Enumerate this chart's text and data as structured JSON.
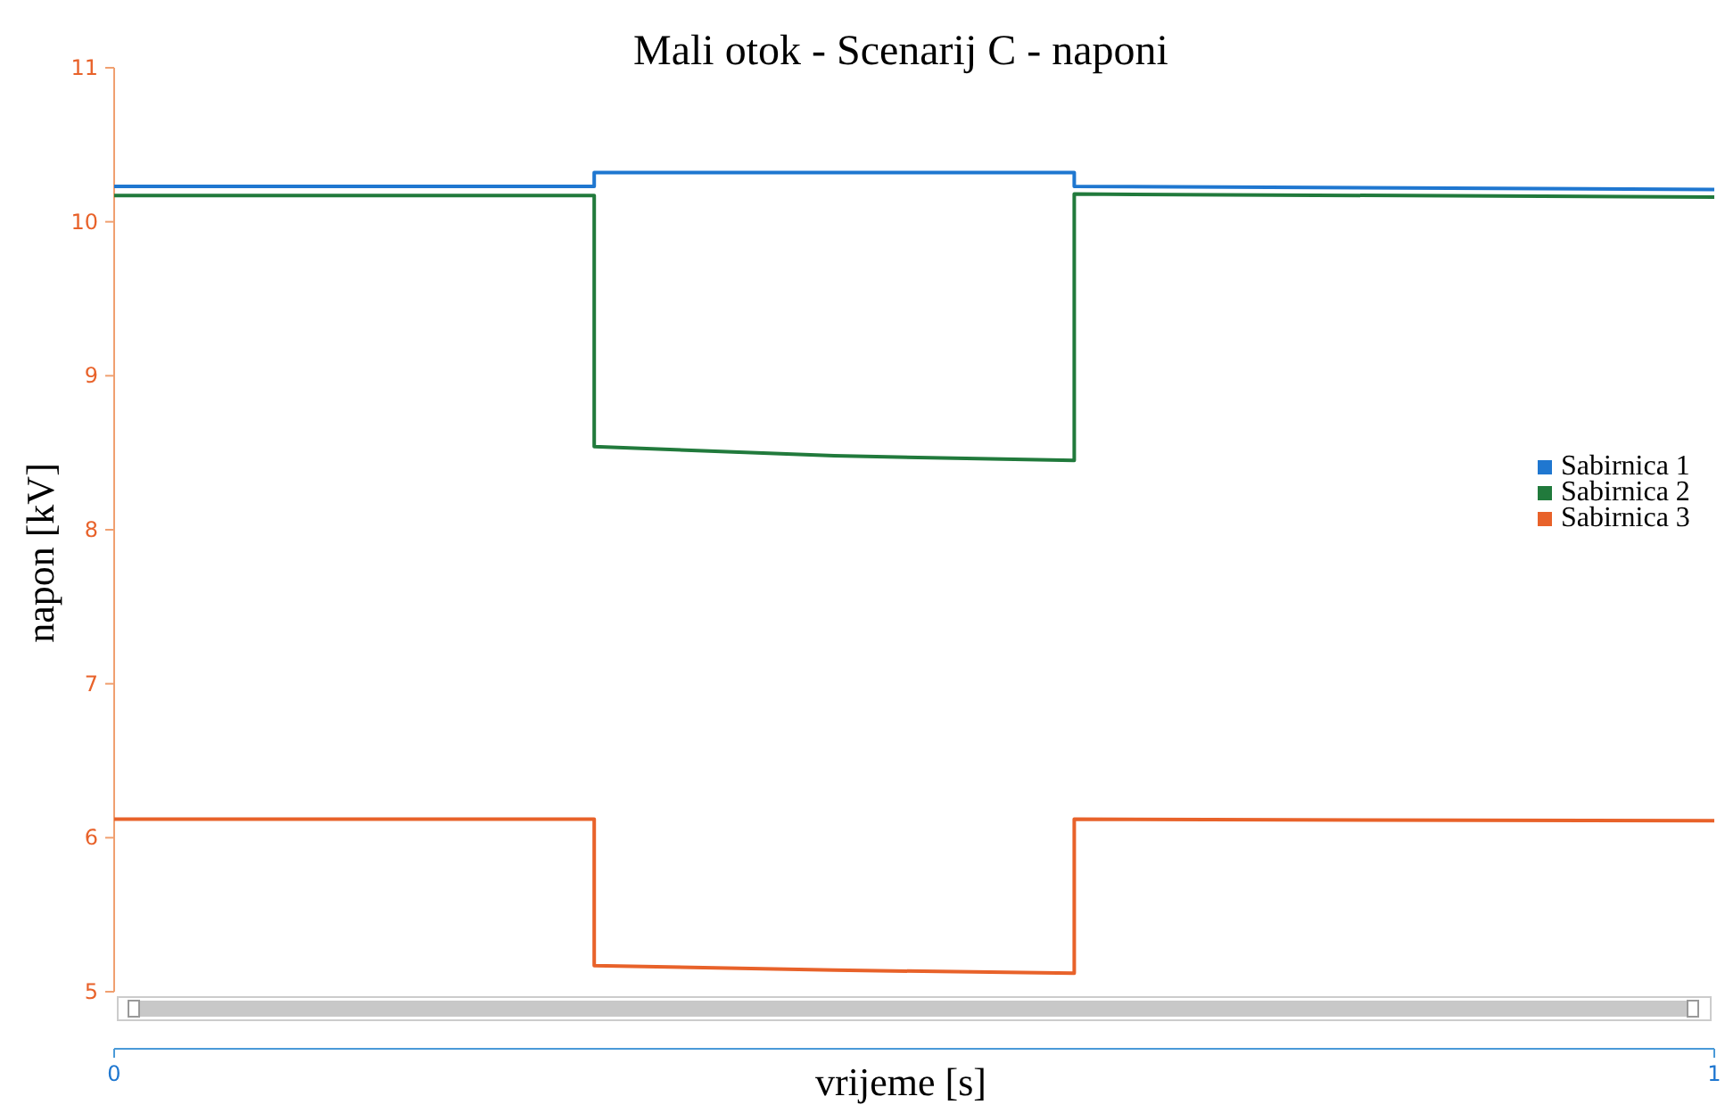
{
  "chart_data": {
    "type": "line",
    "title": "Mali otok - Scenarij C - naponi",
    "xlabel": "vrijeme [s]",
    "ylabel": "napon [kV]",
    "x": [
      0,
      0.3,
      0.3,
      0.45,
      0.6,
      0.6,
      1
    ],
    "xlim": [
      0,
      1
    ],
    "xticks": [
      0,
      1
    ],
    "ylim": [
      5,
      11
    ],
    "yticks": [
      5,
      6,
      7,
      8,
      9,
      10,
      11
    ],
    "series": [
      {
        "name": "Sabirnica 1",
        "color": "#1f77d0",
        "values": [
          10.23,
          10.23,
          10.32,
          10.32,
          10.32,
          10.23,
          10.21
        ]
      },
      {
        "name": "Sabirnica 2",
        "color": "#217a3c",
        "values": [
          10.17,
          10.17,
          8.54,
          8.48,
          8.45,
          10.18,
          10.16
        ]
      },
      {
        "name": "Sabirnica 3",
        "color": "#e8622a",
        "values": [
          6.12,
          6.12,
          5.17,
          5.14,
          5.12,
          6.12,
          6.11
        ]
      }
    ],
    "legend": "right",
    "marker": "none",
    "line_style": "solid",
    "grid": false
  }
}
